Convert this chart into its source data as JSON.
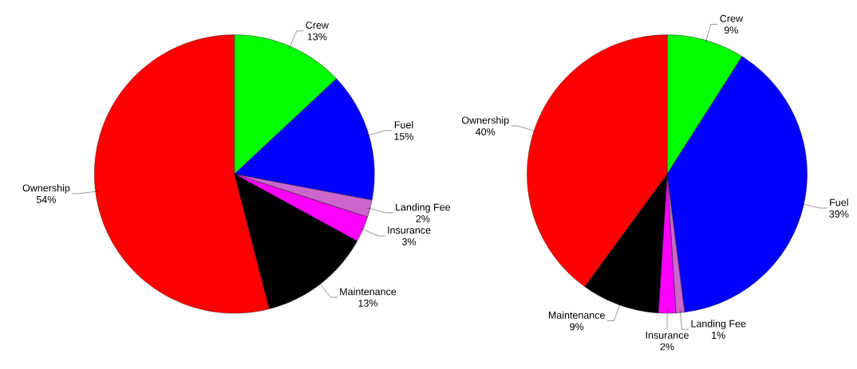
{
  "chart_data": [
    {
      "type": "pie",
      "categories": [
        "Crew",
        "Fuel",
        "Landing Fee",
        "Insurance",
        "Maintenance",
        "Ownership"
      ],
      "values": [
        13,
        15,
        2,
        3,
        13,
        54
      ],
      "colors": [
        "#00ff00",
        "#0000ff",
        "#cc66cc",
        "#ff00ff",
        "#000000",
        "#ff0000"
      ],
      "value_labels": [
        "13%",
        "15%",
        "2%",
        "3%",
        "13%",
        "54%"
      ]
    },
    {
      "type": "pie",
      "categories": [
        "Crew",
        "Fuel",
        "Landing Fee",
        "Insurance",
        "Maintenance",
        "Ownership"
      ],
      "values": [
        9,
        39,
        1,
        2,
        9,
        40
      ],
      "colors": [
        "#00ff00",
        "#0000ff",
        "#cc66cc",
        "#ff00ff",
        "#000000",
        "#ff0000"
      ],
      "value_labels": [
        "9%",
        "39%",
        "1%",
        "2%",
        "9%",
        "40%"
      ]
    }
  ]
}
